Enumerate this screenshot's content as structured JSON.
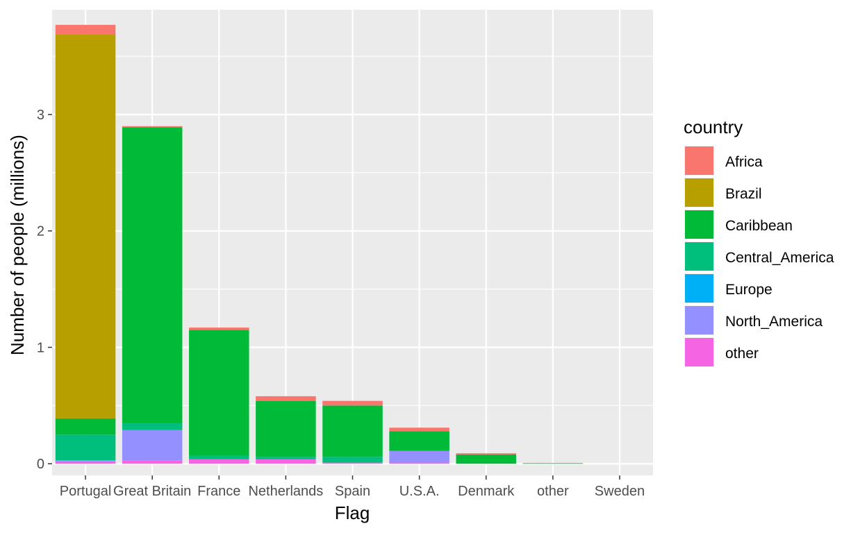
{
  "chart_data": {
    "type": "bar",
    "stacked": true,
    "title": "",
    "xlabel": "Flag",
    "ylabel": "Number of people (millions)",
    "categories": [
      "Portugal",
      "Great Britain",
      "France",
      "Netherlands",
      "Spain",
      "U.S.A.",
      "Denmark",
      "other",
      "Sweden"
    ],
    "ylim": [
      -0.1,
      3.9
    ],
    "yticks": [
      0,
      1,
      2,
      3
    ],
    "grid": true,
    "legend": {
      "title": "country",
      "position": "right"
    },
    "series": [
      {
        "name": "Africa",
        "color": "#F8766D",
        "values": [
          0.08,
          0.01,
          0.02,
          0.04,
          0.04,
          0.03,
          0.01,
          0.0,
          0.0
        ]
      },
      {
        "name": "Brazil",
        "color": "#B79F00",
        "values": [
          3.3,
          0.0,
          0.0,
          0.0,
          0.0,
          0.0,
          0.0,
          0.0,
          0.0
        ]
      },
      {
        "name": "Caribbean",
        "color": "#00BA38",
        "values": [
          0.14,
          2.54,
          1.08,
          0.48,
          0.44,
          0.17,
          0.08,
          0.005,
          0.0
        ]
      },
      {
        "name": "Central_America",
        "color": "#00BF7D",
        "values": [
          0.22,
          0.06,
          0.03,
          0.02,
          0.05,
          0.0,
          0.0,
          0.0,
          0.0
        ]
      },
      {
        "name": "Europe",
        "color": "#00B0F6",
        "values": [
          0.0,
          0.0,
          0.0,
          0.0,
          0.0,
          0.0,
          0.0,
          0.0,
          0.0
        ]
      },
      {
        "name": "North_America",
        "color": "#9590FF",
        "values": [
          0.01,
          0.26,
          0.0,
          0.0,
          0.0,
          0.1,
          0.0,
          0.0,
          0.0
        ]
      },
      {
        "name": "other",
        "color": "#F564E3",
        "values": [
          0.02,
          0.03,
          0.04,
          0.04,
          0.01,
          0.01,
          0.0,
          0.0,
          0.0
        ]
      }
    ]
  }
}
